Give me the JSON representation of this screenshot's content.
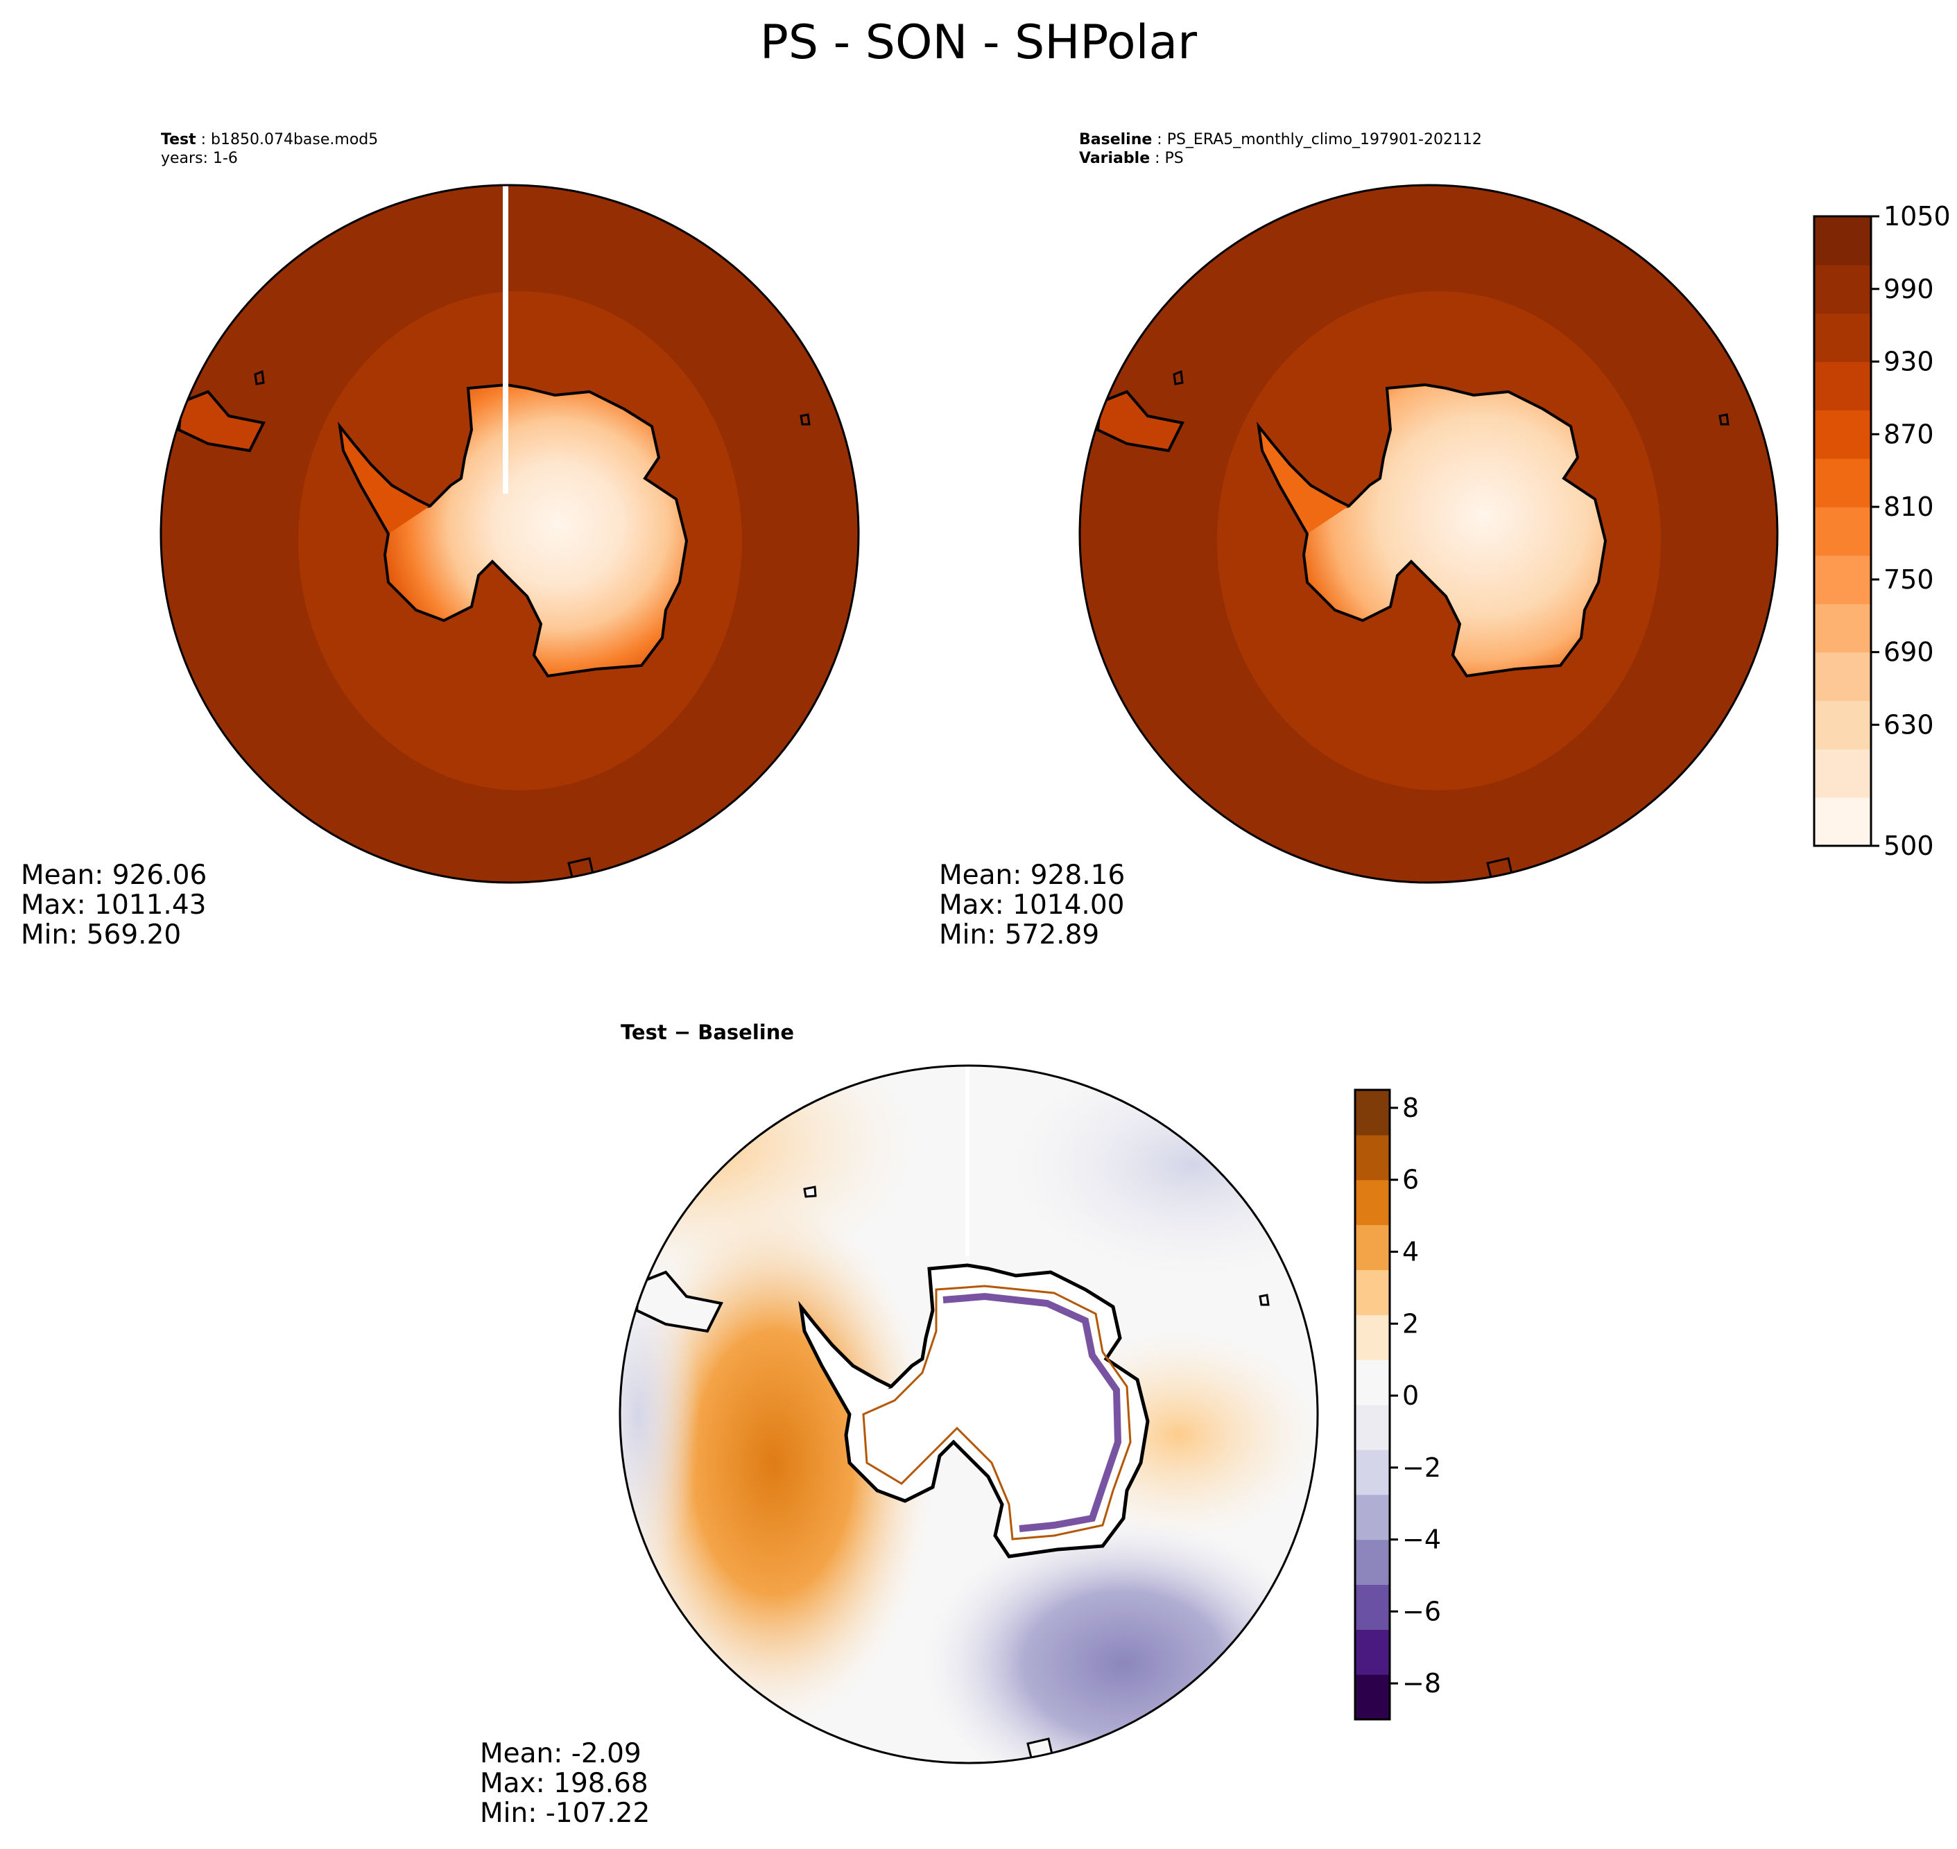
{
  "title": "PS - SON - SHPolar",
  "panels": {
    "test": {
      "label_bold": "Test",
      "label_sep": " : ",
      "label_value": "b1850.074base.mod5",
      "line2": "years: 1-6",
      "stats": {
        "mean": "Mean: 926.06",
        "max": "Max: 1011.43",
        "min": "Min: 569.20"
      }
    },
    "baseline": {
      "label_bold": "Baseline",
      "label_sep": " : ",
      "label_value": "PS_ERA5_monthly_climo_197901-202112",
      "line2_bold": "Variable",
      "line2_sep": " : ",
      "line2_value": "PS",
      "stats": {
        "mean": "Mean: 928.16",
        "max": "Max: 1014.00",
        "min": "Min: 572.89"
      }
    },
    "diff": {
      "title_a": "Test",
      "title_sep": " − ",
      "title_b": "Baseline",
      "stats": {
        "mean": "Mean: -2.09",
        "max": "Max: 198.68",
        "min": "Min: -107.22"
      }
    }
  },
  "colorbars": {
    "abs": {
      "min": 500,
      "max": 1050,
      "tick_labels": [
        "1050",
        "990",
        "930",
        "870",
        "810",
        "750",
        "690",
        "630",
        "500"
      ],
      "colors": [
        "#fff5eb",
        "#fee6ce",
        "#fdd9b2",
        "#fdc895",
        "#fdb272",
        "#fd9a4f",
        "#f8822e",
        "#ef6a13",
        "#de5205",
        "#c44103",
        "#a83603",
        "#952e03",
        "#7f2704"
      ]
    },
    "diff": {
      "min": -9,
      "max": 8.5,
      "tick_labels": [
        "8",
        "6",
        "4",
        "2",
        "0",
        "−2",
        "−4",
        "−6",
        "−8"
      ],
      "colors": [
        "#2d004b",
        "#4b1a81",
        "#6a51a3",
        "#8c86bc",
        "#b1aed3",
        "#d4d5e8",
        "#ecebf2",
        "#f7f7f7",
        "#fde8cb",
        "#fdcc8c",
        "#f4a448",
        "#df7c14",
        "#b35806",
        "#7f3b08"
      ]
    }
  }
}
